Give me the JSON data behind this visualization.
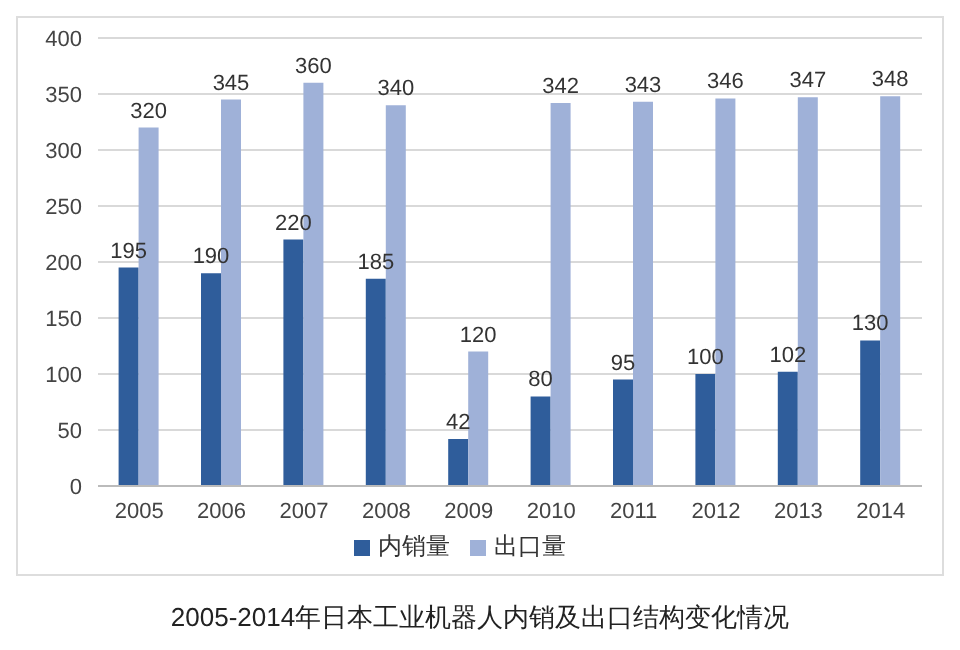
{
  "chart_data": {
    "type": "bar",
    "title": "2005-2014年日本工业机器人内销及出口结构变化情况",
    "categories": [
      "2005",
      "2006",
      "2007",
      "2008",
      "2009",
      "2010",
      "2011",
      "2012",
      "2013",
      "2014"
    ],
    "series": [
      {
        "name": "内销量",
        "color": "#2f5d9b",
        "values": [
          195,
          190,
          220,
          185,
          42,
          80,
          95,
          100,
          102,
          130
        ]
      },
      {
        "name": "出口量",
        "color": "#9fb1d8",
        "values": [
          320,
          345,
          360,
          340,
          120,
          342,
          343,
          346,
          347,
          348
        ]
      }
    ],
    "ylim": [
      0,
      400
    ],
    "yticks": [
      0,
      50,
      100,
      150,
      200,
      250,
      300,
      350,
      400
    ],
    "grid": "y",
    "legend": "bottom",
    "data_labels": true
  }
}
